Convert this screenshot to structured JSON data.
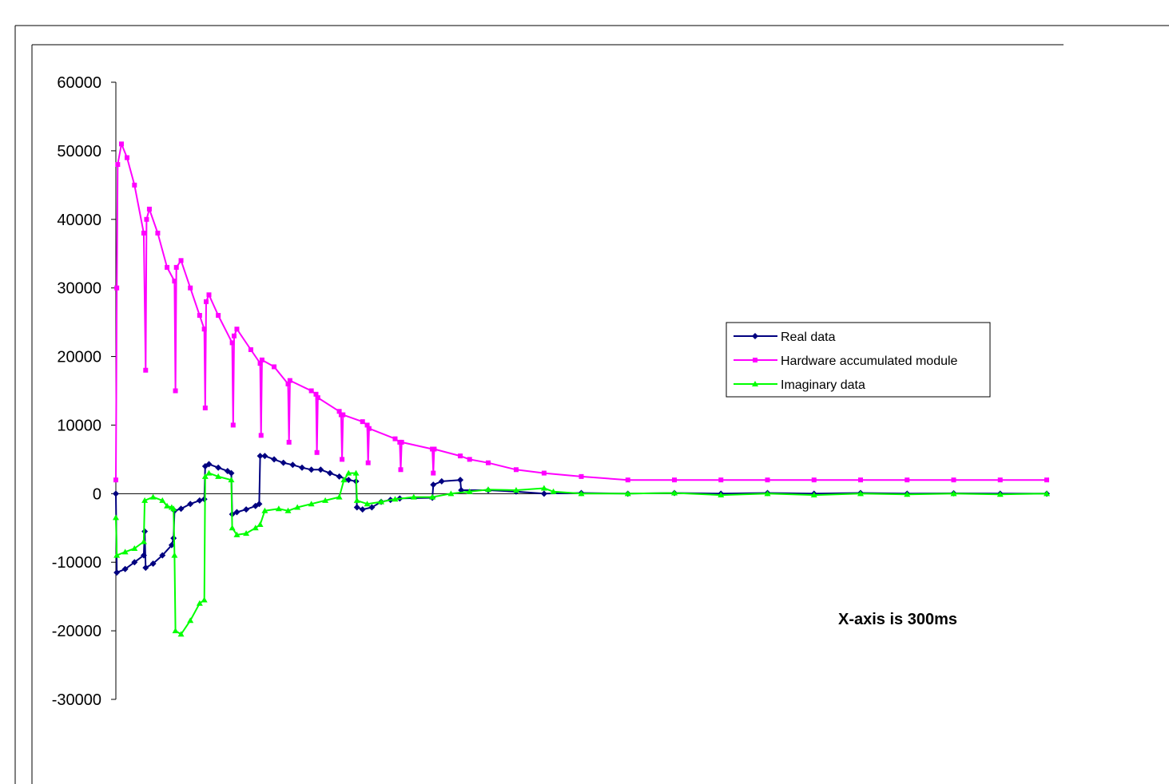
{
  "chart_data": {
    "type": "line",
    "title": "",
    "xlabel": "",
    "ylabel": "",
    "annotation": "X-axis is 300ms",
    "ylim": [
      -30000,
      60000
    ],
    "yticks": [
      60000,
      50000,
      40000,
      30000,
      20000,
      10000,
      0,
      -10000,
      -20000,
      -30000
    ],
    "xlim": [
      0,
      1000
    ],
    "grid": false,
    "legend_position": "right",
    "series": [
      {
        "name": "Real data",
        "color": "#000080",
        "marker": "diamond",
        "points": [
          [
            0,
            0
          ],
          [
            1,
            -11500
          ],
          [
            10,
            -11000
          ],
          [
            20,
            -10000
          ],
          [
            30,
            -9000
          ],
          [
            31,
            -5500
          ],
          [
            32,
            -10800
          ],
          [
            40,
            -10200
          ],
          [
            50,
            -9000
          ],
          [
            60,
            -7500
          ],
          [
            62,
            -6500
          ],
          [
            63,
            -2500
          ],
          [
            70,
            -2200
          ],
          [
            80,
            -1500
          ],
          [
            90,
            -1000
          ],
          [
            95,
            -800
          ],
          [
            96,
            4000
          ],
          [
            100,
            4300
          ],
          [
            110,
            3800
          ],
          [
            120,
            3300
          ],
          [
            124,
            3000
          ],
          [
            125,
            -3000
          ],
          [
            130,
            -2700
          ],
          [
            140,
            -2300
          ],
          [
            150,
            -1800
          ],
          [
            154,
            -1500
          ],
          [
            155,
            5500
          ],
          [
            160,
            5500
          ],
          [
            170,
            5000
          ],
          [
            180,
            4500
          ],
          [
            190,
            4200
          ],
          [
            200,
            3800
          ],
          [
            210,
            3500
          ],
          [
            220,
            3500
          ],
          [
            230,
            3000
          ],
          [
            240,
            2500
          ],
          [
            250,
            2000
          ],
          [
            258,
            1800
          ],
          [
            259,
            -2000
          ],
          [
            265,
            -2300
          ],
          [
            275,
            -2000
          ],
          [
            285,
            -1200
          ],
          [
            295,
            -900
          ],
          [
            305,
            -700
          ],
          [
            340,
            -600
          ],
          [
            341,
            1300
          ],
          [
            350,
            1800
          ],
          [
            370,
            2000
          ],
          [
            371,
            500
          ],
          [
            400,
            500
          ],
          [
            430,
            300
          ],
          [
            460,
            0
          ],
          [
            500,
            100
          ],
          [
            550,
            0
          ],
          [
            600,
            100
          ],
          [
            650,
            0
          ],
          [
            700,
            100
          ],
          [
            750,
            0
          ],
          [
            800,
            100
          ],
          [
            850,
            0
          ],
          [
            900,
            50
          ],
          [
            950,
            0
          ],
          [
            1000,
            0
          ]
        ]
      },
      {
        "name": "Hardware accumulated module",
        "color": "#ff00ff",
        "marker": "square",
        "points": [
          [
            0,
            2000
          ],
          [
            1,
            30000
          ],
          [
            2,
            48000
          ],
          [
            6,
            51000
          ],
          [
            12,
            49000
          ],
          [
            20,
            45000
          ],
          [
            30,
            38000
          ],
          [
            32,
            18000
          ],
          [
            33,
            40000
          ],
          [
            36,
            41500
          ],
          [
            45,
            38000
          ],
          [
            55,
            33000
          ],
          [
            63,
            31000
          ],
          [
            64,
            15000
          ],
          [
            65,
            33000
          ],
          [
            70,
            34000
          ],
          [
            80,
            30000
          ],
          [
            90,
            26000
          ],
          [
            95,
            24000
          ],
          [
            96,
            12500
          ],
          [
            97,
            28000
          ],
          [
            100,
            29000
          ],
          [
            110,
            26000
          ],
          [
            125,
            22000
          ],
          [
            126,
            10000
          ],
          [
            127,
            23000
          ],
          [
            130,
            24000
          ],
          [
            145,
            21000
          ],
          [
            155,
            19000
          ],
          [
            156,
            8500
          ],
          [
            157,
            19500
          ],
          [
            170,
            18500
          ],
          [
            185,
            16000
          ],
          [
            186,
            7500
          ],
          [
            187,
            16500
          ],
          [
            210,
            15000
          ],
          [
            215,
            14500
          ],
          [
            216,
            6000
          ],
          [
            217,
            14000
          ],
          [
            240,
            12000
          ],
          [
            242,
            11500
          ],
          [
            243,
            5000
          ],
          [
            244,
            11500
          ],
          [
            265,
            10500
          ],
          [
            270,
            10000
          ],
          [
            271,
            4500
          ],
          [
            272,
            9500
          ],
          [
            300,
            8000
          ],
          [
            305,
            7500
          ],
          [
            306,
            3500
          ],
          [
            307,
            7500
          ],
          [
            340,
            6500
          ],
          [
            341,
            3000
          ],
          [
            342,
            6500
          ],
          [
            370,
            5500
          ],
          [
            380,
            5000
          ],
          [
            400,
            4500
          ],
          [
            430,
            3500
          ],
          [
            460,
            3000
          ],
          [
            500,
            2500
          ],
          [
            550,
            2000
          ],
          [
            600,
            2000
          ],
          [
            650,
            2000
          ],
          [
            700,
            2000
          ],
          [
            750,
            2000
          ],
          [
            800,
            2000
          ],
          [
            850,
            2000
          ],
          [
            900,
            2000
          ],
          [
            950,
            2000
          ],
          [
            1000,
            2000
          ]
        ]
      },
      {
        "name": "Imaginary data",
        "color": "#00ff00",
        "marker": "triangle",
        "points": [
          [
            0,
            -3500
          ],
          [
            1,
            -9000
          ],
          [
            10,
            -8500
          ],
          [
            20,
            -8000
          ],
          [
            30,
            -7000
          ],
          [
            31,
            -1000
          ],
          [
            40,
            -500
          ],
          [
            50,
            -1000
          ],
          [
            55,
            -1800
          ],
          [
            60,
            -2000
          ],
          [
            62,
            -2200
          ],
          [
            63,
            -9000
          ],
          [
            64,
            -20000
          ],
          [
            70,
            -20500
          ],
          [
            80,
            -18500
          ],
          [
            90,
            -16000
          ],
          [
            95,
            -15500
          ],
          [
            96,
            2500
          ],
          [
            100,
            3000
          ],
          [
            110,
            2500
          ],
          [
            124,
            2000
          ],
          [
            125,
            -5000
          ],
          [
            130,
            -6000
          ],
          [
            140,
            -5800
          ],
          [
            150,
            -5000
          ],
          [
            155,
            -4500
          ],
          [
            160,
            -2500
          ],
          [
            175,
            -2200
          ],
          [
            185,
            -2500
          ],
          [
            195,
            -2000
          ],
          [
            210,
            -1500
          ],
          [
            225,
            -1000
          ],
          [
            240,
            -500
          ],
          [
            245,
            2000
          ],
          [
            250,
            3000
          ],
          [
            258,
            3000
          ],
          [
            259,
            -1000
          ],
          [
            270,
            -1500
          ],
          [
            285,
            -1200
          ],
          [
            300,
            -800
          ],
          [
            320,
            -500
          ],
          [
            340,
            -500
          ],
          [
            360,
            0
          ],
          [
            380,
            300
          ],
          [
            400,
            600
          ],
          [
            430,
            500
          ],
          [
            460,
            800
          ],
          [
            470,
            300
          ],
          [
            500,
            0
          ],
          [
            550,
            0
          ],
          [
            600,
            100
          ],
          [
            650,
            -200
          ],
          [
            700,
            0
          ],
          [
            750,
            -200
          ],
          [
            800,
            0
          ],
          [
            850,
            -100
          ],
          [
            900,
            0
          ],
          [
            950,
            -100
          ],
          [
            1000,
            0
          ]
        ]
      }
    ]
  }
}
